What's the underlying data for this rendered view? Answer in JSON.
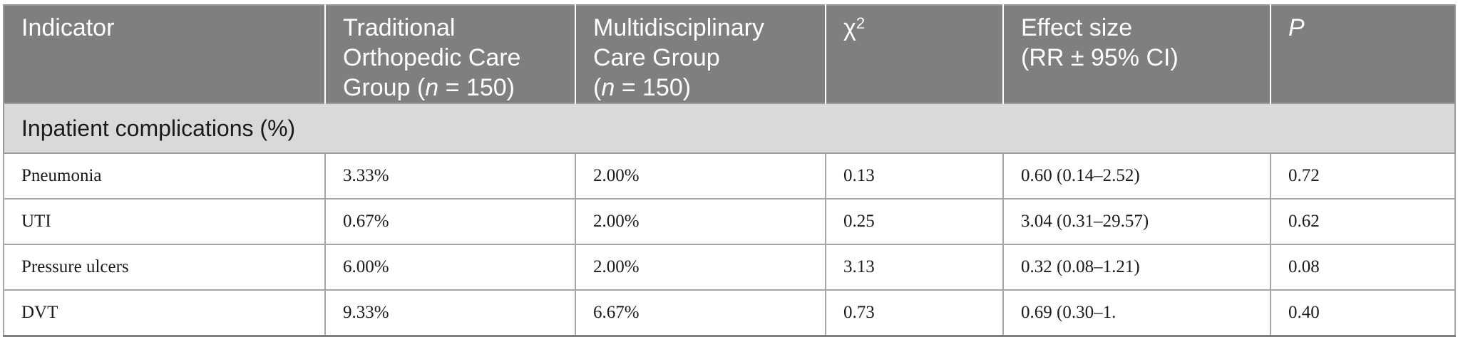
{
  "table": {
    "headers": [
      {
        "parts": [
          "Indicator"
        ]
      },
      {
        "line1": "Traditional",
        "line2": "Orthopedic Care",
        "line3_pre": "Group (",
        "n": "n",
        "line3_post": " = 150)"
      },
      {
        "line1": "Multidisciplinary",
        "line2": "Care Group",
        "line3_pre": "(",
        "n": "n",
        "line3_post": " = 150)"
      },
      {
        "chi": "χ",
        "sup": "2"
      },
      {
        "line1": "Effect size",
        "line2": "(RR ± 95% CI)"
      },
      {
        "p": "P"
      }
    ],
    "section_label": "Inpatient complications (%)",
    "rows": [
      {
        "indicator": "Pneumonia",
        "traditional": "3.33%",
        "multidisciplinary": "2.00%",
        "chi2": "0.13",
        "effect": "0.60 (0.14–2.52)",
        "p": "0.72"
      },
      {
        "indicator": "UTI",
        "traditional": "0.67%",
        "multidisciplinary": "2.00%",
        "chi2": "0.25",
        "effect": "3.04 (0.31–29.57)",
        "p": "0.62"
      },
      {
        "indicator": "Pressure ulcers",
        "traditional": "6.00%",
        "multidisciplinary": "2.00%",
        "chi2": "3.13",
        "effect": "0.32 (0.08–1.21)",
        "p": "0.08"
      },
      {
        "indicator": "DVT",
        "traditional": "9.33%",
        "multidisciplinary": "6.67%",
        "chi2": "0.73",
        "effect": "0.69 (0.30–1.",
        "p": "0.40"
      }
    ]
  }
}
